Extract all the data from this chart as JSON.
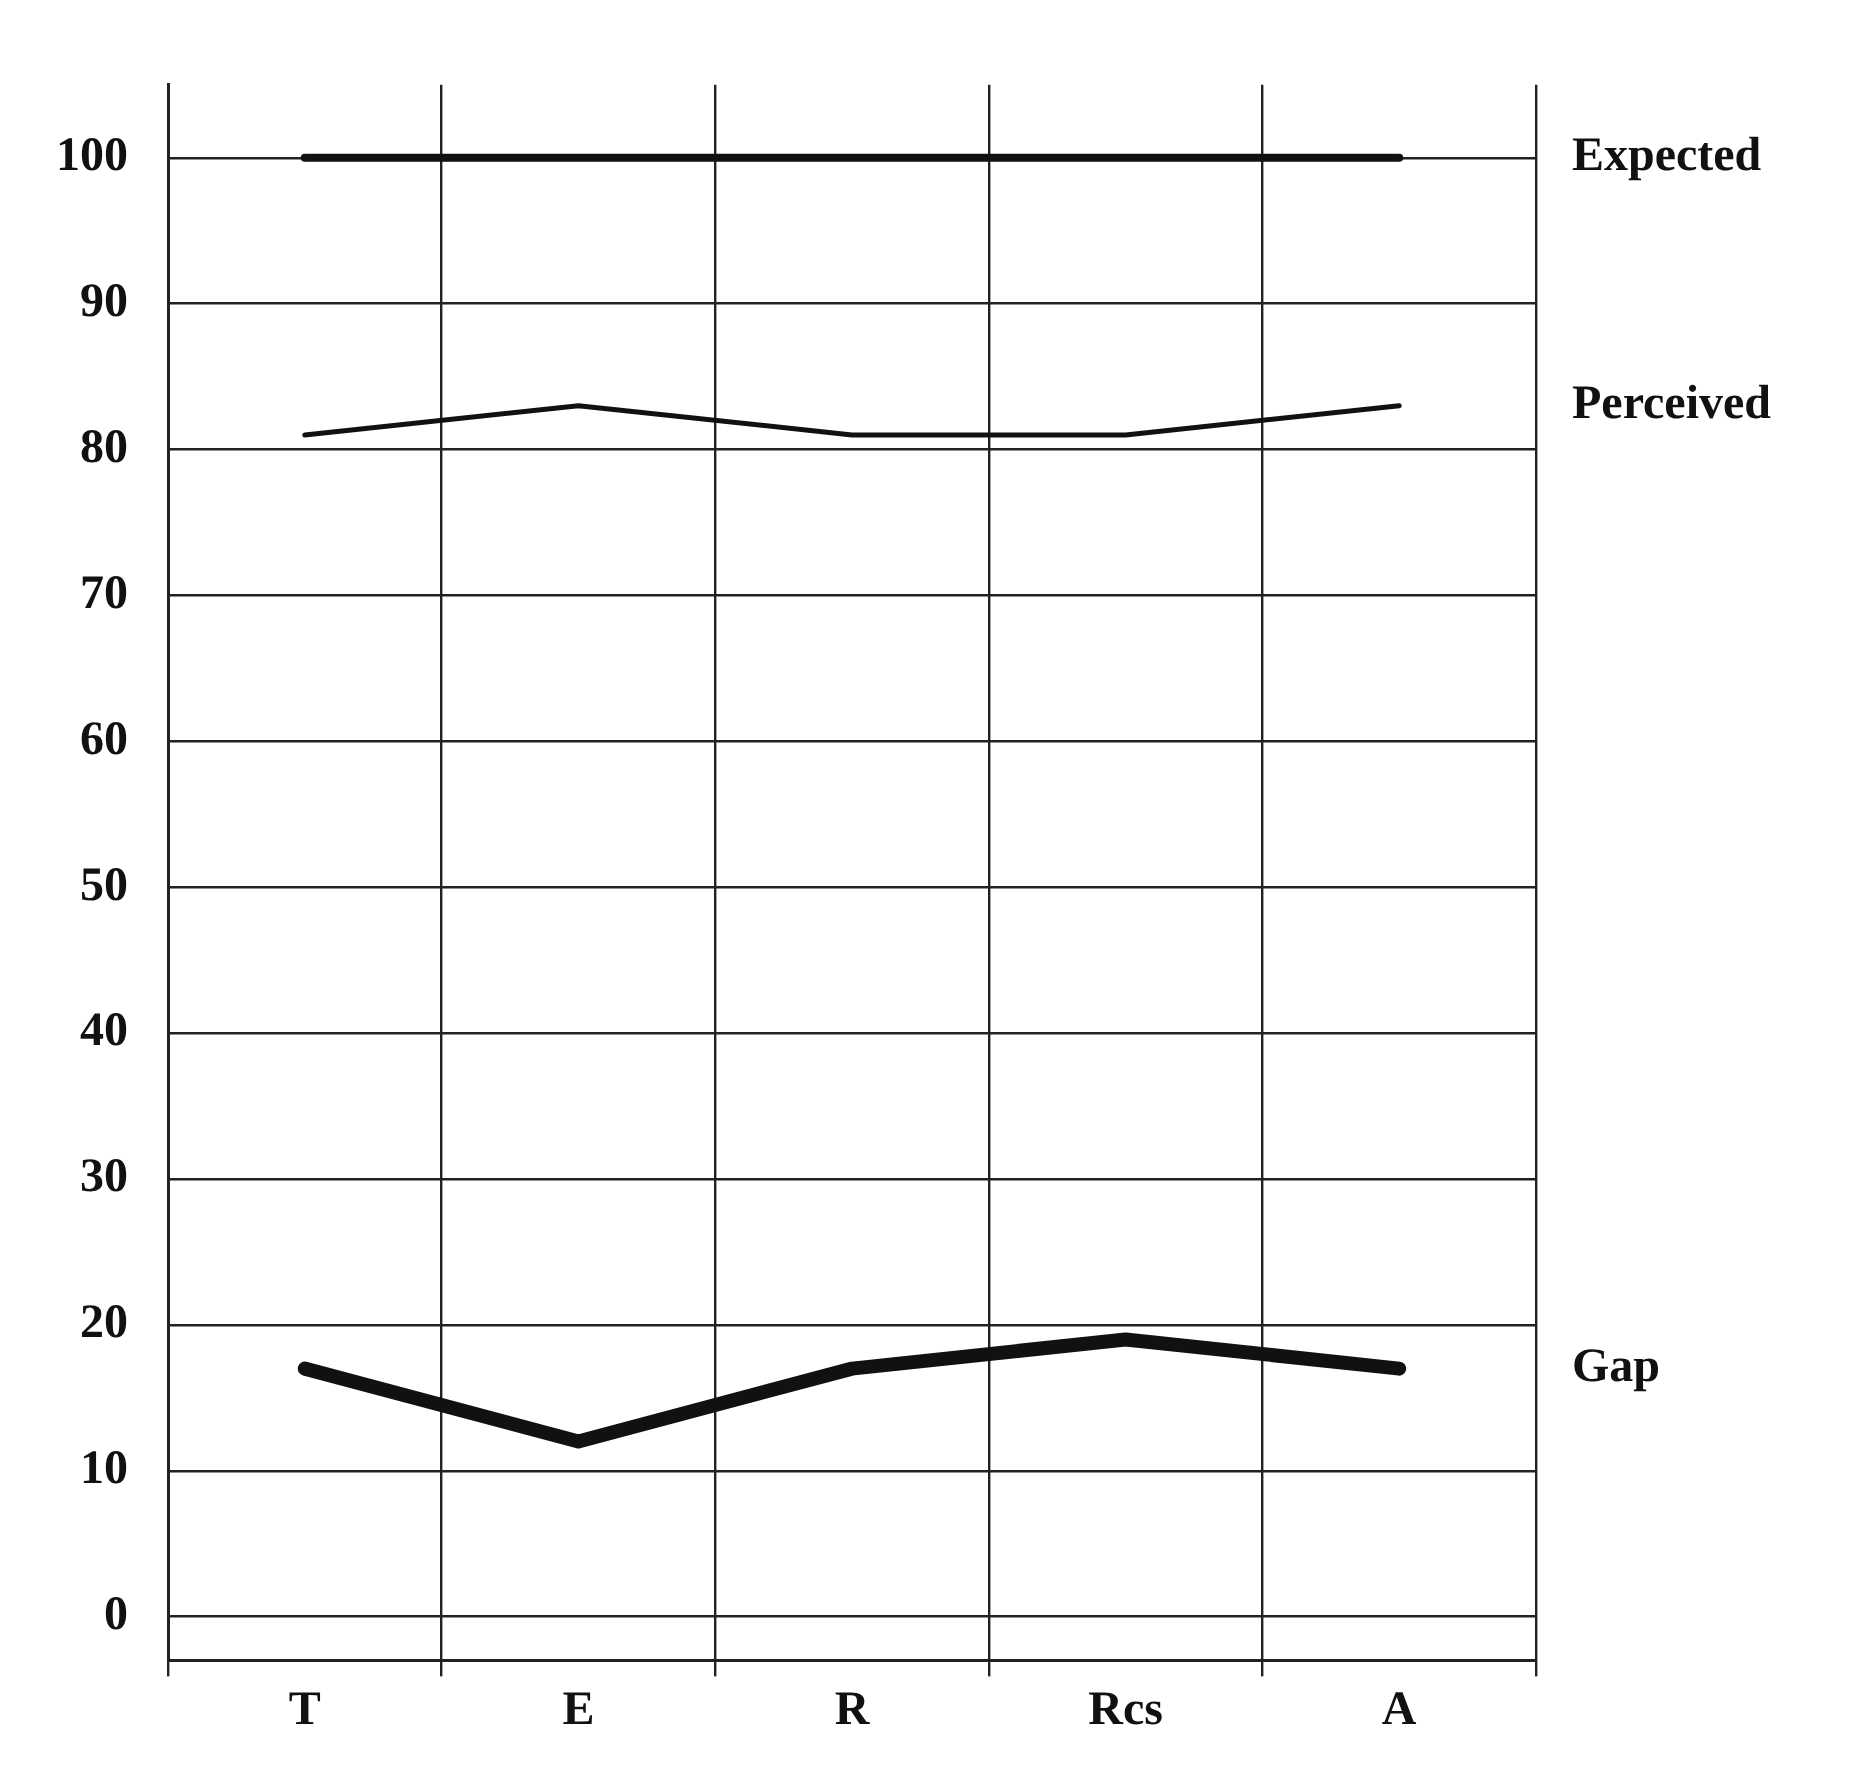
{
  "chart_data": {
    "type": "line",
    "categories": [
      "T",
      "E",
      "R",
      "Rcs",
      "A"
    ],
    "series": [
      {
        "name": "Expected",
        "color": "#111111",
        "values": [
          100,
          100,
          100,
          100,
          100
        ]
      },
      {
        "name": "Perceived",
        "color": "#111111",
        "values": [
          81,
          83,
          81,
          81,
          83
        ]
      },
      {
        "name": "Gap",
        "color": "#111111",
        "values": [
          17,
          12,
          17,
          19,
          17
        ]
      }
    ],
    "ylim": [
      -3,
      105
    ],
    "yticks": [
      0,
      10,
      20,
      30,
      40,
      50,
      60,
      70,
      80,
      90,
      100
    ],
    "grid": true,
    "legend": false,
    "marker": "none",
    "line_style": "solid"
  }
}
